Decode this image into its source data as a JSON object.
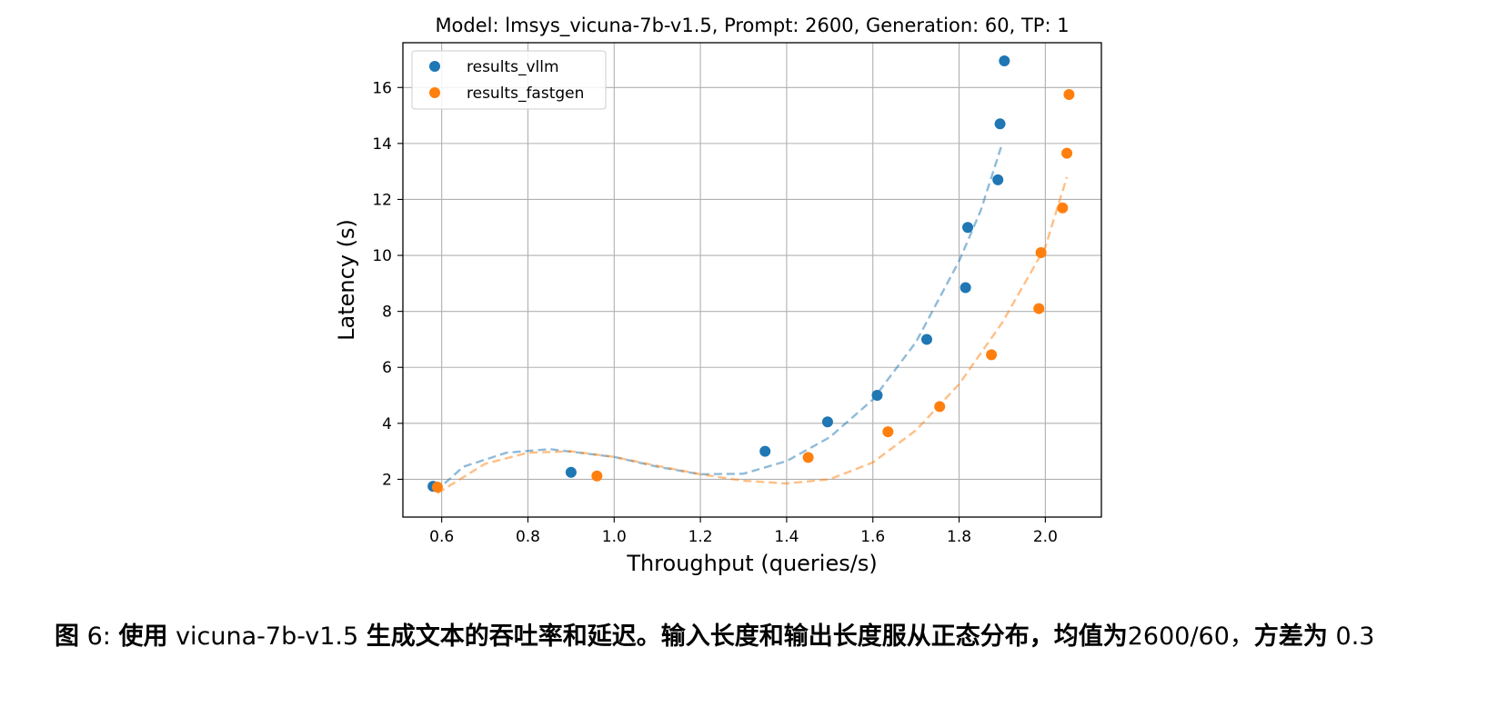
{
  "chart_data": {
    "type": "scatter",
    "title": "Model: lmsys_vicuna-7b-v1.5, Prompt: 2600, Generation: 60, TP: 1",
    "xlabel": "Throughput (queries/s)",
    "ylabel": "Latency (s)",
    "xlim": [
      0.51,
      2.13
    ],
    "ylim": [
      0.65,
      17.6
    ],
    "xticks": [
      "0.6",
      "0.8",
      "1.0",
      "1.2",
      "1.4",
      "1.6",
      "1.8",
      "2.0"
    ],
    "yticks": [
      "2",
      "4",
      "6",
      "8",
      "10",
      "12",
      "14",
      "16"
    ],
    "grid": true,
    "legend": "top-left",
    "series": [
      {
        "name": "results_vllm",
        "color": "#1f77b4",
        "points": [
          [
            0.58,
            1.75
          ],
          [
            0.9,
            2.25
          ],
          [
            1.35,
            3.0
          ],
          [
            1.495,
            4.05
          ],
          [
            1.61,
            5.0
          ],
          [
            1.725,
            7.0
          ],
          [
            1.815,
            8.85
          ],
          [
            1.82,
            11.0
          ],
          [
            1.89,
            12.7
          ],
          [
            1.895,
            14.7
          ],
          [
            1.905,
            16.95
          ]
        ],
        "fit": [
          [
            0.585,
            1.55
          ],
          [
            0.65,
            2.45
          ],
          [
            0.75,
            2.95
          ],
          [
            0.85,
            3.08
          ],
          [
            1.0,
            2.8
          ],
          [
            1.1,
            2.45
          ],
          [
            1.2,
            2.18
          ],
          [
            1.3,
            2.2
          ],
          [
            1.4,
            2.65
          ],
          [
            1.5,
            3.5
          ],
          [
            1.6,
            4.85
          ],
          [
            1.7,
            6.9
          ],
          [
            1.8,
            9.8
          ],
          [
            1.85,
            11.6
          ],
          [
            1.9,
            14.0
          ]
        ]
      },
      {
        "name": "results_fastgen",
        "color": "#ff7f0e",
        "points": [
          [
            0.59,
            1.72
          ],
          [
            0.96,
            2.12
          ],
          [
            1.45,
            2.78
          ],
          [
            1.635,
            3.7
          ],
          [
            1.755,
            4.6
          ],
          [
            1.875,
            6.45
          ],
          [
            1.985,
            8.1
          ],
          [
            1.99,
            10.1
          ],
          [
            2.04,
            11.7
          ],
          [
            2.05,
            13.65
          ],
          [
            2.055,
            15.75
          ]
        ],
        "fit": [
          [
            0.59,
            1.5
          ],
          [
            0.7,
            2.55
          ],
          [
            0.8,
            2.95
          ],
          [
            0.9,
            3.0
          ],
          [
            1.0,
            2.8
          ],
          [
            1.1,
            2.48
          ],
          [
            1.2,
            2.18
          ],
          [
            1.3,
            1.95
          ],
          [
            1.4,
            1.85
          ],
          [
            1.5,
            2.0
          ],
          [
            1.6,
            2.6
          ],
          [
            1.7,
            3.75
          ],
          [
            1.8,
            5.4
          ],
          [
            1.9,
            7.6
          ],
          [
            2.0,
            10.3
          ],
          [
            2.05,
            12.8
          ]
        ]
      }
    ]
  },
  "caption": {
    "label": "图",
    "number": "6:",
    "part1": "使用",
    "model": "vicuna-7b-v1.5",
    "part2": "生成文本的吞吐率和延迟。输入长度和输出长度服从正态分布，均值为",
    "mean": "2600/60",
    "comma": "，",
    "part3": "方差为",
    "variance": "0.3"
  }
}
